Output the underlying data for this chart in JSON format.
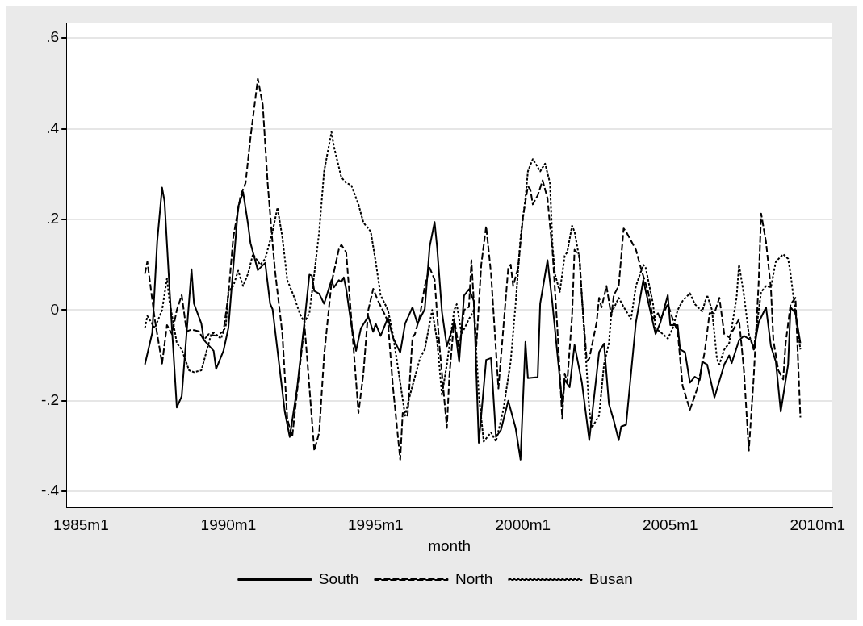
{
  "chart_data": {
    "type": "line",
    "xlabel": "month",
    "xlim": [
      "1984-07",
      "2010-07"
    ],
    "xticks": [
      {
        "value": "1985-01",
        "label": "1985m1"
      },
      {
        "value": "1990-01",
        "label": "1990m1"
      },
      {
        "value": "1995-01",
        "label": "1995m1"
      },
      {
        "value": "2000-01",
        "label": "2000m1"
      },
      {
        "value": "2005-01",
        "label": "2005m1"
      },
      {
        "value": "2010-01",
        "label": "2010m1"
      }
    ],
    "ylim": [
      -0.436,
      0.634
    ],
    "yticks": [
      {
        "value": -0.4,
        "label": "-.4"
      },
      {
        "value": -0.2,
        "label": "-.2"
      },
      {
        "value": 0,
        "label": "0"
      },
      {
        "value": 0.2,
        "label": ".2"
      },
      {
        "value": 0.4,
        "label": ".4"
      },
      {
        "value": 0.6,
        "label": ".6"
      }
    ],
    "grid": "y",
    "legend": "bottom",
    "marker": "none",
    "series": [
      {
        "name": "South",
        "color": "#000000",
        "line_style": "solid",
        "x": [
          "1987-03",
          "1987-06",
          "1987-08",
          "1987-10",
          "1987-11",
          "1988-01",
          "1988-04",
          "1988-06",
          "1988-10",
          "1988-11",
          "1989-02",
          "1989-03",
          "1989-07",
          "1989-08",
          "1989-11",
          "1990-01",
          "1990-05",
          "1990-07",
          "1990-09",
          "1990-10",
          "1991-01",
          "1991-04",
          "1991-06",
          "1991-07",
          "1991-12",
          "1992-02",
          "1992-05",
          "1992-08",
          "1992-10",
          "1992-11",
          "1992-12",
          "1993-02",
          "1993-04",
          "1993-07",
          "1993-08",
          "1993-10",
          "1993-11",
          "1993-12",
          "1994-01",
          "1994-03",
          "1994-05",
          "1994-07",
          "1994-10",
          "1994-12",
          "1995-01",
          "1995-03",
          "1995-06",
          "1995-08",
          "1995-11",
          "1996-01",
          "1996-04",
          "1996-06",
          "1996-09",
          "1996-11",
          "1997-01",
          "1997-02",
          "1997-04",
          "1997-06",
          "1997-09",
          "1997-11",
          "1998-01",
          "1998-03",
          "1998-05",
          "1998-07",
          "1998-10",
          "1998-12",
          "1999-02",
          "1999-04",
          "1999-07",
          "1999-10",
          "1999-12",
          "2000-02",
          "2000-03",
          "2000-07",
          "2000-08",
          "2000-11",
          "2001-01",
          "2001-05",
          "2001-06",
          "2001-08",
          "2001-10",
          "2002-01",
          "2002-04",
          "2002-08",
          "2002-10",
          "2002-12",
          "2003-02",
          "2003-04",
          "2003-05",
          "2003-07",
          "2003-11",
          "2004-02",
          "2004-07",
          "2004-09",
          "2004-12",
          "2005-01",
          "2005-04",
          "2005-05",
          "2005-07",
          "2005-09",
          "2005-11",
          "2006-01",
          "2006-02",
          "2006-04",
          "2006-07",
          "2006-11",
          "2007-01",
          "2007-02",
          "2007-05",
          "2007-07",
          "2007-10",
          "2007-11",
          "2008-01",
          "2008-04",
          "2008-06",
          "2008-08",
          "2008-10",
          "2009-01",
          "2009-02",
          "2009-04",
          "2009-06"
        ],
        "values": [
          -0.12,
          -0.05,
          0.15,
          0.27,
          0.24,
          0.05,
          -0.215,
          -0.19,
          0.09,
          0.014,
          -0.03,
          -0.066,
          -0.09,
          -0.13,
          -0.09,
          -0.04,
          0.228,
          0.26,
          0.19,
          0.148,
          0.088,
          0.104,
          0.014,
          0.002,
          -0.225,
          -0.28,
          -0.172,
          -0.026,
          0.078,
          0.076,
          0.042,
          0.036,
          0.014,
          0.066,
          0.05,
          0.066,
          0.062,
          0.072,
          0.046,
          -0.03,
          -0.09,
          -0.04,
          -0.014,
          -0.048,
          -0.03,
          -0.057,
          -0.017,
          -0.06,
          -0.094,
          -0.03,
          0.006,
          -0.03,
          0.002,
          0.14,
          0.194,
          0.14,
          -0.004,
          -0.08,
          -0.027,
          -0.114,
          0.032,
          0.046,
          0.02,
          -0.293,
          -0.11,
          -0.106,
          -0.28,
          -0.265,
          -0.2,
          -0.26,
          -0.33,
          -0.07,
          -0.15,
          -0.148,
          0.014,
          0.11,
          0.014,
          -0.206,
          -0.154,
          -0.17,
          -0.077,
          -0.16,
          -0.287,
          -0.093,
          -0.074,
          -0.207,
          -0.244,
          -0.287,
          -0.257,
          -0.253,
          -0.027,
          0.066,
          -0.053,
          -0.027,
          0.033,
          -0.033,
          -0.033,
          -0.087,
          -0.093,
          -0.16,
          -0.147,
          -0.154,
          -0.114,
          -0.12,
          -0.193,
          -0.12,
          -0.1,
          -0.117,
          -0.067,
          -0.057,
          -0.067,
          -0.087,
          -0.027,
          0.006,
          -0.08,
          -0.114,
          -0.224,
          -0.12,
          0.006,
          -0.007,
          -0.073
        ]
      },
      {
        "name": "North",
        "color": "#000000",
        "line_style": "dashed",
        "x": [
          "1987-03",
          "1987-04",
          "1987-07",
          "1987-10",
          "1987-12",
          "1988-02",
          "1988-04",
          "1988-06",
          "1988-08",
          "1988-10",
          "1989-01",
          "1989-03",
          "1989-05",
          "1989-08",
          "1989-11",
          "1990-01",
          "1990-03",
          "1990-06",
          "1990-08",
          "1990-10",
          "1991-01",
          "1991-03",
          "1991-05",
          "1991-07",
          "1991-08",
          "1991-11",
          "1992-01",
          "1992-03",
          "1992-05",
          "1992-08",
          "1992-09",
          "1992-12",
          "1993-02",
          "1993-04",
          "1993-07",
          "1993-10",
          "1993-11",
          "1994-01",
          "1994-03",
          "1994-06",
          "1994-08",
          "1994-10",
          "1994-12",
          "1995-02",
          "1995-05",
          "1995-06",
          "1995-08",
          "1995-11",
          "1995-12",
          "1996-02",
          "1996-04",
          "1996-05",
          "1996-07",
          "1996-09",
          "1996-11",
          "1997-01",
          "1997-03",
          "1997-06",
          "1997-07",
          "1997-09",
          "1997-11",
          "1998-01",
          "1998-03",
          "1998-04",
          "1998-06",
          "1998-08",
          "1998-10",
          "1998-12",
          "1999-03",
          "1999-05",
          "1999-07",
          "1999-08",
          "1999-09",
          "1999-11",
          "2000-01",
          "2000-03",
          "2000-04",
          "2000-05",
          "2000-07",
          "2000-09",
          "2000-11",
          "2000-12",
          "2001-01",
          "2001-03",
          "2001-05",
          "2001-06",
          "2001-07",
          "2001-09",
          "2001-10",
          "2001-12",
          "2002-01",
          "2002-03",
          "2002-04",
          "2002-07",
          "2002-08",
          "2002-09",
          "2002-11",
          "2003-01",
          "2003-02",
          "2003-04",
          "2003-06",
          "2003-07",
          "2003-11",
          "2004-01",
          "2004-04",
          "2004-06",
          "2004-08",
          "2004-09",
          "2004-12",
          "2005-02",
          "2005-04",
          "2005-06",
          "2005-09",
          "2005-12",
          "2006-03",
          "2006-05",
          "2006-07",
          "2006-09",
          "2006-11",
          "2007-01",
          "2007-05",
          "2007-07",
          "2007-09",
          "2007-11",
          "2008-01",
          "2008-02",
          "2008-04",
          "2008-06",
          "2008-07",
          "2008-09",
          "2008-11",
          "2008-12",
          "2009-02",
          "2009-04",
          "2009-06"
        ],
        "values": [
          0.08,
          0.107,
          -0.02,
          -0.118,
          -0.033,
          -0.053,
          0.0,
          0.033,
          -0.047,
          -0.043,
          -0.047,
          -0.066,
          -0.053,
          -0.057,
          -0.047,
          0.033,
          0.16,
          0.253,
          0.28,
          0.38,
          0.51,
          0.453,
          0.28,
          0.147,
          0.087,
          -0.053,
          -0.24,
          -0.28,
          -0.18,
          -0.033,
          -0.1,
          -0.31,
          -0.27,
          -0.1,
          0.06,
          0.134,
          0.144,
          0.127,
          -0.013,
          -0.227,
          -0.14,
          0.0,
          0.047,
          0.02,
          -0.013,
          -0.027,
          -0.167,
          -0.33,
          -0.227,
          -0.233,
          -0.06,
          -0.053,
          -0.013,
          0.053,
          0.093,
          0.067,
          -0.08,
          -0.26,
          -0.147,
          -0.02,
          -0.087,
          0.0,
          0.007,
          0.11,
          -0.08,
          0.1,
          0.185,
          0.08,
          -0.173,
          -0.04,
          0.093,
          0.1,
          0.053,
          0.093,
          0.206,
          0.273,
          0.266,
          0.233,
          0.253,
          0.286,
          0.246,
          0.186,
          0.133,
          -0.04,
          -0.24,
          -0.14,
          -0.16,
          -0.013,
          0.133,
          0.12,
          0.027,
          -0.113,
          -0.107,
          -0.027,
          0.027,
          0.006,
          0.053,
          -0.013,
          0.033,
          0.053,
          0.18,
          0.173,
          0.133,
          0.093,
          0.04,
          -0.02,
          -0.007,
          -0.02,
          0.013,
          -0.02,
          -0.047,
          -0.167,
          -0.22,
          -0.173,
          -0.093,
          -0.007,
          -0.007,
          0.027,
          -0.053,
          -0.06,
          -0.02,
          -0.133,
          -0.31,
          -0.147,
          0.06,
          0.213,
          0.15,
          0.047,
          -0.067,
          -0.133,
          -0.153,
          -0.073,
          0.013,
          0.027,
          -0.237
        ]
      },
      {
        "name": "Busan",
        "color": "#000000",
        "line_style": "dotted",
        "x": [
          "1987-03",
          "1987-04",
          "1987-07",
          "1987-10",
          "1987-12",
          "1988-01",
          "1988-04",
          "1988-06",
          "1988-09",
          "1988-11",
          "1989-02",
          "1989-04",
          "1989-06",
          "1989-07",
          "1989-10",
          "1989-12",
          "1990-01",
          "1990-03",
          "1990-05",
          "1990-07",
          "1990-09",
          "1990-11",
          "1991-02",
          "1991-04",
          "1991-07",
          "1991-09",
          "1991-11",
          "1992-01",
          "1992-04",
          "1992-06",
          "1992-08",
          "1992-10",
          "1992-12",
          "1993-02",
          "1993-04",
          "1993-07",
          "1993-08",
          "1993-11",
          "1994-01",
          "1994-03",
          "1994-06",
          "1994-08",
          "1994-11",
          "1995-01",
          "1995-03",
          "1995-06",
          "1995-08",
          "1995-11",
          "1996-01",
          "1996-03",
          "1996-07",
          "1996-09",
          "1996-12",
          "1997-02",
          "1997-04",
          "1997-06",
          "1997-09",
          "1997-10",
          "1997-12",
          "1998-03",
          "1998-05",
          "1998-07",
          "1998-09",
          "1998-12",
          "1999-02",
          "1999-05",
          "1999-08",
          "1999-10",
          "1999-12",
          "2000-02",
          "2000-03",
          "2000-05",
          "2000-08",
          "2000-10",
          "2000-12",
          "2001-01",
          "2001-02",
          "2001-04",
          "2001-06",
          "2001-07",
          "2001-09",
          "2001-10",
          "2001-12",
          "2002-02",
          "2002-04",
          "2002-05",
          "2002-08",
          "2002-10",
          "2002-12",
          "2003-01",
          "2003-04",
          "2003-06",
          "2003-09",
          "2003-11",
          "2004-02",
          "2004-03",
          "2004-06",
          "2004-07",
          "2004-10",
          "2004-12",
          "2005-02",
          "2005-04",
          "2005-06",
          "2005-09",
          "2005-11",
          "2006-02",
          "2006-04",
          "2006-06",
          "2006-08",
          "2006-09",
          "2006-11",
          "2007-01",
          "2007-04",
          "2007-05",
          "2007-07",
          "2007-09",
          "2007-11",
          "2008-02",
          "2008-04",
          "2008-06",
          "2008-08",
          "2008-11",
          "2009-01",
          "2009-02",
          "2009-04",
          "2009-06"
        ],
        "values": [
          -0.04,
          -0.013,
          -0.04,
          0.0,
          0.07,
          0.02,
          -0.073,
          -0.087,
          -0.133,
          -0.137,
          -0.133,
          -0.093,
          -0.053,
          -0.05,
          -0.063,
          -0.033,
          0.04,
          0.053,
          0.087,
          0.053,
          0.08,
          0.123,
          0.1,
          0.113,
          0.173,
          0.226,
          0.16,
          0.066,
          0.026,
          -0.007,
          -0.027,
          -0.007,
          0.08,
          0.173,
          0.306,
          0.393,
          0.36,
          0.293,
          0.28,
          0.276,
          0.233,
          0.193,
          0.173,
          0.107,
          0.033,
          0.0,
          -0.053,
          -0.16,
          -0.233,
          -0.187,
          -0.107,
          -0.087,
          0.0,
          -0.067,
          -0.187,
          -0.12,
          0.0,
          0.013,
          -0.053,
          -0.02,
          0.0,
          -0.187,
          -0.29,
          -0.27,
          -0.29,
          -0.22,
          -0.113,
          0.013,
          0.16,
          0.246,
          0.306,
          0.333,
          0.306,
          0.323,
          0.28,
          0.147,
          0.08,
          0.04,
          0.12,
          0.127,
          0.186,
          0.173,
          0.113,
          -0.053,
          -0.22,
          -0.26,
          -0.233,
          -0.12,
          -0.073,
          -0.007,
          0.027,
          0.007,
          -0.02,
          0.053,
          0.1,
          0.093,
          0.013,
          -0.04,
          -0.053,
          -0.063,
          -0.04,
          0.0,
          0.02,
          0.037,
          0.013,
          -0.003,
          0.033,
          0.0,
          -0.107,
          -0.12,
          -0.087,
          -0.073,
          0.027,
          0.1,
          0.033,
          -0.053,
          -0.087,
          0.04,
          0.053,
          0.05,
          0.107,
          0.123,
          0.113,
          0.08,
          -0.007,
          -0.087
        ]
      }
    ]
  }
}
